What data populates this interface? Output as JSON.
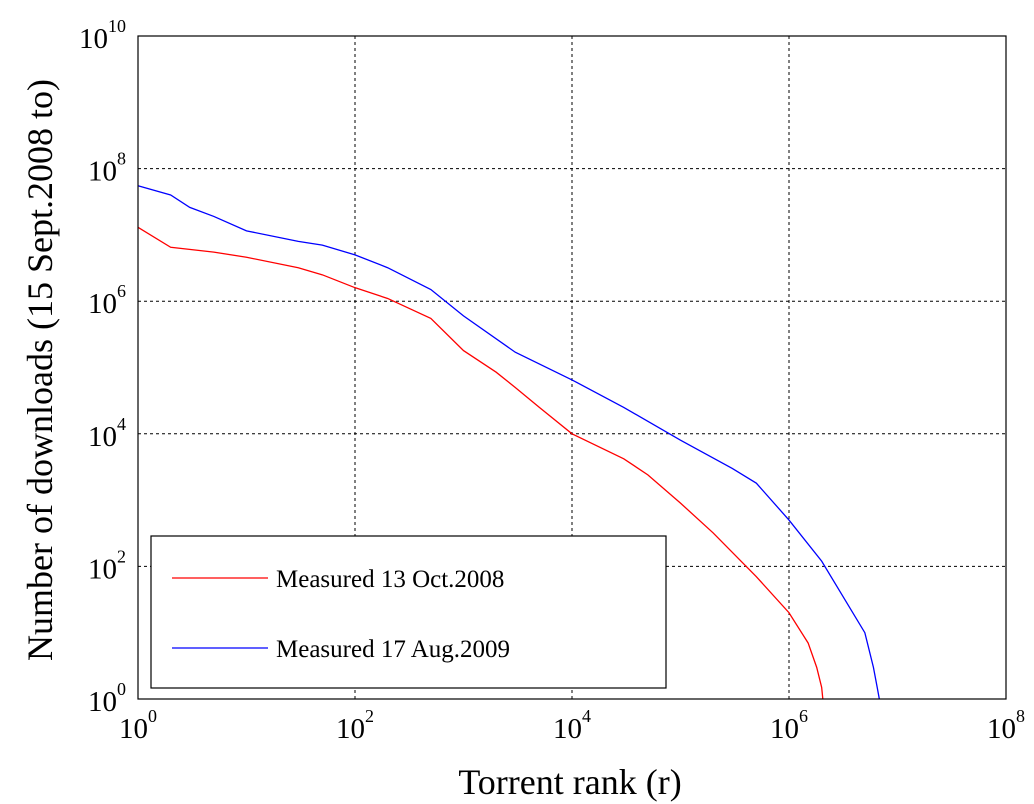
{
  "chart_data": {
    "type": "line",
    "title": "",
    "xlabel": "Torrent rank (r)",
    "ylabel": "Number of downloads (15 Sept.2008 to)",
    "x_scale": "log",
    "y_scale": "log",
    "xlim": [
      1,
      100000000
    ],
    "ylim": [
      1,
      10000000000
    ],
    "grid": true,
    "legend_position": "bottom-left",
    "x_ticks": [
      {
        "base": "10",
        "exp": "0"
      },
      {
        "base": "10",
        "exp": "2"
      },
      {
        "base": "10",
        "exp": "4"
      },
      {
        "base": "10",
        "exp": "6"
      },
      {
        "base": "10",
        "exp": "8"
      }
    ],
    "y_ticks": [
      {
        "base": "10",
        "exp": "0"
      },
      {
        "base": "10",
        "exp": "2"
      },
      {
        "base": "10",
        "exp": "4"
      },
      {
        "base": "10",
        "exp": "6"
      },
      {
        "base": "10",
        "exp": "8"
      },
      {
        "base": "10",
        "exp": "10"
      }
    ],
    "series": [
      {
        "name": "Measured 13 Oct.2008",
        "color": "#ff0000",
        "points": [
          [
            1,
            13000000
          ],
          [
            2,
            6500000
          ],
          [
            5,
            5500000
          ],
          [
            10,
            4600000
          ],
          [
            30,
            3200000
          ],
          [
            50,
            2500000
          ],
          [
            100,
            1600000
          ],
          [
            200,
            1100000
          ],
          [
            500,
            550000
          ],
          [
            1000,
            180000
          ],
          [
            2000,
            85000
          ],
          [
            3000,
            50000
          ],
          [
            5000,
            25000
          ],
          [
            10000,
            10000
          ],
          [
            30000,
            4200.0
          ],
          [
            50000,
            2400
          ],
          [
            100000,
            900
          ],
          [
            200000,
            320
          ],
          [
            500000,
            70
          ],
          [
            1000000,
            20
          ],
          [
            1500000,
            7
          ],
          [
            1800000,
            3
          ],
          [
            2000000,
            1.5
          ],
          [
            2050000,
            1
          ]
        ]
      },
      {
        "name": "Measured 17 Aug.2009",
        "color": "#0000ff",
        "points": [
          [
            1,
            55000000
          ],
          [
            2,
            40000000
          ],
          [
            3,
            26000000
          ],
          [
            5,
            19000000
          ],
          [
            10,
            11500000
          ],
          [
            30,
            8000000
          ],
          [
            50,
            7000000
          ],
          [
            100,
            5000000
          ],
          [
            200,
            3200000
          ],
          [
            500,
            1500000
          ],
          [
            1000,
            600000
          ],
          [
            3000,
            170000
          ],
          [
            10000,
            65000
          ],
          [
            30000,
            25000
          ],
          [
            100000,
            8000
          ],
          [
            300000,
            3000
          ],
          [
            500000,
            1800
          ],
          [
            1000000,
            500
          ],
          [
            2000000,
            120
          ],
          [
            3000000,
            40
          ],
          [
            5000000,
            10
          ],
          [
            6000000,
            3
          ],
          [
            6500000,
            1.5
          ],
          [
            6800000,
            1
          ]
        ]
      }
    ]
  }
}
